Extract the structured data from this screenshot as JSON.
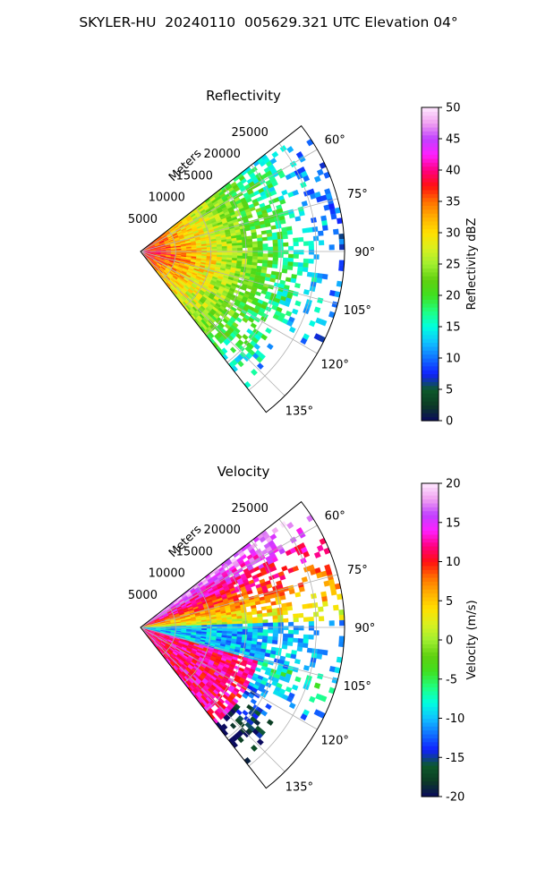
{
  "figure_title": "SKYLER-HU  20240110  005629.321 UTC Elevation 04°",
  "chart_data": [
    {
      "type": "heatmap",
      "title": "Reflectivity",
      "radial_label": "Meters",
      "radial_ticks": [
        5000,
        10000,
        15000,
        20000,
        25000
      ],
      "r_max": 29000,
      "angle_ticks": [
        "60°",
        "75°",
        "90°",
        "105°",
        "120°",
        "135°"
      ],
      "angle_tick_values": [
        60,
        75,
        90,
        105,
        120,
        135
      ],
      "theta_range": [
        52,
        142
      ],
      "grid": true,
      "colorbar": {
        "label": "Reflectivity dBZ",
        "min": 0,
        "max": 50,
        "ticks": [
          0,
          5,
          10,
          15,
          20,
          25,
          30,
          35,
          40,
          45,
          50
        ],
        "colormap": [
          "#0a0a5e",
          "#0c3b24",
          "#0d5a2a",
          "#1020ff",
          "#1070ff",
          "#10c0ff",
          "#00ffe0",
          "#20ff80",
          "#40e020",
          "#60d010",
          "#a0ef30",
          "#d8f020",
          "#ffe000",
          "#ffb000",
          "#ff7000",
          "#ff1010",
          "#ff0080",
          "#ff20ff",
          "#c040ff",
          "#f0a0f0",
          "#ffe8ff"
        ]
      },
      "field": "reflectivity"
    },
    {
      "type": "heatmap",
      "title": "Velocity",
      "radial_label": "Meters",
      "radial_ticks": [
        5000,
        10000,
        15000,
        20000,
        25000
      ],
      "r_max": 29000,
      "angle_ticks": [
        "60°",
        "75°",
        "90°",
        "105°",
        "120°",
        "135°"
      ],
      "angle_tick_values": [
        60,
        75,
        90,
        105,
        120,
        135
      ],
      "theta_range": [
        52,
        142
      ],
      "grid": true,
      "colorbar": {
        "label": "Velocity (m/s)",
        "min": -20,
        "max": 20,
        "ticks": [
          -20,
          -15,
          -10,
          -5,
          0,
          5,
          10,
          15,
          20
        ],
        "colormap": [
          "#0a0a5e",
          "#0c3b24",
          "#0d5a2a",
          "#1020ff",
          "#1070ff",
          "#10c0ff",
          "#00ffe0",
          "#20ff80",
          "#40e020",
          "#60d010",
          "#a0ef30",
          "#d8f020",
          "#ffe000",
          "#ffb000",
          "#ff7000",
          "#ff1010",
          "#ff0080",
          "#ff20ff",
          "#c040ff",
          "#f0a0f0",
          "#ffe8ff"
        ]
      },
      "field": "velocity"
    }
  ]
}
